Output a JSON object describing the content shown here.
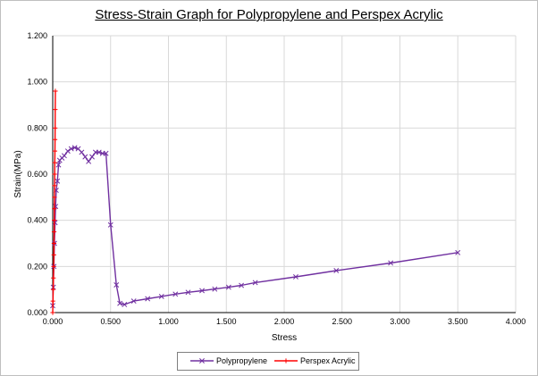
{
  "chart_data": {
    "type": "line",
    "title": "Stress-Strain Graph for Polypropylene and Perspex Acrylic",
    "xlabel": "Stress",
    "ylabel": "Strain(MPa)",
    "xlim": [
      0,
      4
    ],
    "ylim": [
      0,
      1.2
    ],
    "x_ticks": [
      "0.000",
      "0.500",
      "1.000",
      "1.500",
      "2.000",
      "2.500",
      "3.000",
      "3.500",
      "4.000"
    ],
    "y_ticks": [
      "0.000",
      "0.200",
      "0.400",
      "0.600",
      "0.800",
      "1.000",
      "1.200"
    ],
    "grid": true,
    "legend_position": "bottom",
    "series": [
      {
        "name": "Polypropylene",
        "color": "#7030a0",
        "marker": "x",
        "x": [
          0.0,
          0.005,
          0.01,
          0.015,
          0.02,
          0.025,
          0.03,
          0.04,
          0.05,
          0.06,
          0.08,
          0.1,
          0.13,
          0.16,
          0.19,
          0.22,
          0.25,
          0.28,
          0.31,
          0.34,
          0.37,
          0.4,
          0.43,
          0.46,
          0.5,
          0.55,
          0.58,
          0.62,
          0.7,
          0.82,
          0.94,
          1.06,
          1.17,
          1.29,
          1.4,
          1.52,
          1.63,
          1.75,
          2.1,
          2.45,
          2.92,
          3.5
        ],
        "y": [
          0.03,
          0.11,
          0.2,
          0.3,
          0.39,
          0.46,
          0.53,
          0.57,
          0.64,
          0.66,
          0.67,
          0.68,
          0.7,
          0.71,
          0.715,
          0.71,
          0.695,
          0.675,
          0.655,
          0.675,
          0.695,
          0.695,
          0.69,
          0.69,
          0.38,
          0.12,
          0.04,
          0.035,
          0.05,
          0.06,
          0.07,
          0.08,
          0.088,
          0.095,
          0.102,
          0.11,
          0.118,
          0.13,
          0.155,
          0.182,
          0.215,
          0.26
        ]
      },
      {
        "name": "Perspex Acrylic",
        "color": "#ff0000",
        "marker": "+",
        "x": [
          0.0,
          0.002,
          0.004,
          0.006,
          0.008,
          0.01,
          0.011,
          0.012,
          0.013,
          0.014,
          0.015,
          0.016,
          0.017,
          0.018,
          0.019,
          0.02,
          0.021,
          0.022,
          0.023
        ],
        "y": [
          0.0,
          0.05,
          0.1,
          0.15,
          0.2,
          0.25,
          0.3,
          0.35,
          0.4,
          0.45,
          0.5,
          0.55,
          0.6,
          0.65,
          0.7,
          0.75,
          0.8,
          0.88,
          0.96
        ]
      }
    ]
  }
}
